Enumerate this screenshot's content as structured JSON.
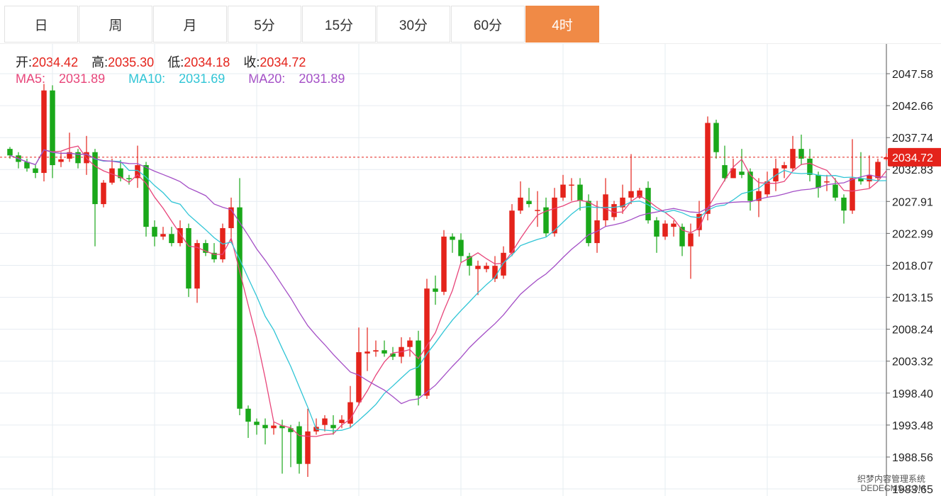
{
  "tabs": [
    {
      "label": "日",
      "active": false
    },
    {
      "label": "周",
      "active": false
    },
    {
      "label": "月",
      "active": false
    },
    {
      "label": "5分",
      "active": false
    },
    {
      "label": "15分",
      "active": false
    },
    {
      "label": "30分",
      "active": false
    },
    {
      "label": "60分",
      "active": false
    },
    {
      "label": "4时",
      "active": true
    }
  ],
  "ohlc": {
    "open_label": "开:",
    "open": "2034.42",
    "high_label": "高:",
    "high": "2035.30",
    "low_label": "低:",
    "low": "2034.18",
    "close_label": "收:",
    "close": "2034.72"
  },
  "ma": {
    "ma5_label": "MA5:",
    "ma5": "2031.89",
    "ma10_label": "MA10:",
    "ma10": "2031.69",
    "ma20_label": "MA20:",
    "ma20": "2031.89"
  },
  "colors": {
    "up": "#e4231b",
    "down": "#1aa81a",
    "ma5": "#e8457a",
    "ma10": "#30c5d6",
    "ma20": "#a44fc6",
    "grid": "#e6ecf1",
    "price_line": "#e4231b",
    "active_tab": "#f08a46"
  },
  "watermark": {
    "line1": "织梦内容管理系统",
    "line2": "DEDECMS.COM"
  },
  "chart_data": {
    "type": "candlestick",
    "yticks": [
      "2047.58",
      "2042.66",
      "2037.74",
      "2032.83",
      "2027.91",
      "2022.99",
      "2018.07",
      "2013.15",
      "2008.24",
      "2003.32",
      "1998.40",
      "1993.48",
      "1988.56",
      "1983.65"
    ],
    "current_price": "2034.72",
    "ylim": [
      1983.65,
      2050.0
    ],
    "candles": [
      [
        2036.0,
        2035.0,
        2036.3,
        2034.5
      ],
      [
        2035.0,
        2034.0,
        2035.5,
        2033.0
      ],
      [
        2034.0,
        2033.0,
        2034.5,
        2032.5
      ],
      [
        2033.0,
        2032.3,
        2033.5,
        2031.5
      ],
      [
        2032.3,
        2045.0,
        2046.0,
        2031.0
      ],
      [
        2045.0,
        2033.5,
        2045.8,
        2031.5
      ],
      [
        2034.0,
        2034.4,
        2035.5,
        2033.2
      ],
      [
        2034.5,
        2035.5,
        2038.5,
        2034.0
      ],
      [
        2035.5,
        2033.8,
        2036.0,
        2033.0
      ],
      [
        2033.8,
        2035.5,
        2038.0,
        2032.0
      ],
      [
        2035.5,
        2027.5,
        2036.0,
        2021.0
      ],
      [
        2027.5,
        2030.8,
        2031.2,
        2027.0
      ],
      [
        2030.8,
        2033.0,
        2034.5,
        2030.5
      ],
      [
        2033.0,
        2031.5,
        2034.3,
        2031.0
      ],
      [
        2031.5,
        2031.4,
        2032.0,
        2030.5
      ],
      [
        2031.5,
        2033.5,
        2036.5,
        2030.0
      ],
      [
        2033.5,
        2024.0,
        2034.0,
        2022.5
      ],
      [
        2024.0,
        2022.5,
        2025.0,
        2021.0
      ],
      [
        2022.5,
        2022.9,
        2024.0,
        2022.0
      ],
      [
        2022.9,
        2021.5,
        2024.0,
        2021.0
      ],
      [
        2021.5,
        2023.8,
        2025.0,
        2021.0
      ],
      [
        2023.8,
        2014.5,
        2024.5,
        2013.2
      ],
      [
        2014.5,
        2021.5,
        2022.0,
        2012.3
      ],
      [
        2021.5,
        2020.0,
        2022.0,
        2019.5
      ],
      [
        2020.0,
        2019.0,
        2021.5,
        2018.5
      ],
      [
        2019.0,
        2023.8,
        2024.5,
        2018.5
      ],
      [
        2023.8,
        2027.0,
        2028.5,
        2021.5
      ],
      [
        2027.0,
        1996.0,
        2031.5,
        1995.0
      ],
      [
        1996.0,
        1994.0,
        1996.5,
        1991.5
      ],
      [
        1994.0,
        1993.5,
        1994.5,
        1992.0
      ],
      [
        1993.5,
        1993.0,
        1994.5,
        1990.5
      ],
      [
        1993.0,
        1993.4,
        1994.0,
        1992.0
      ],
      [
        1993.4,
        1993.0,
        1994.3,
        1986.0
      ],
      [
        1993.0,
        1992.4,
        1993.5,
        1987.0
      ],
      [
        1993.3,
        1987.5,
        1994.0,
        1986.0
      ],
      [
        1987.5,
        1992.5,
        1996.0,
        1985.5
      ],
      [
        1992.5,
        1993.2,
        1994.5,
        1992.0
      ],
      [
        1993.5,
        1994.5,
        1995.0,
        1992.5
      ],
      [
        1993.5,
        1993.0,
        1995.0,
        1992.0
      ],
      [
        1993.8,
        1994.3,
        1995.0,
        1993.0
      ],
      [
        1993.7,
        1997.0,
        1999.5,
        1993.0
      ],
      [
        1997.0,
        2004.7,
        2008.5,
        1996.5
      ],
      [
        2004.5,
        2004.8,
        2008.5,
        2001.8
      ],
      [
        2004.8,
        2005.0,
        2006.5,
        2004.0
      ],
      [
        2005.0,
        2004.5,
        2006.5,
        2004.0
      ],
      [
        2004.5,
        2004.0,
        2005.5,
        2003.5
      ],
      [
        2004.0,
        2005.5,
        2007.0,
        2003.0
      ],
      [
        2005.5,
        2006.5,
        2007.0,
        2004.0
      ],
      [
        2006.5,
        1998.0,
        2008.0,
        1996.5
      ],
      [
        1998.0,
        2014.5,
        2016.0,
        1997.5
      ],
      [
        2014.5,
        2014.0,
        2016.5,
        2012.0
      ],
      [
        2014.0,
        2022.5,
        2023.5,
        2013.5
      ],
      [
        2022.5,
        2022.0,
        2023.0,
        2020.0
      ],
      [
        2022.0,
        2019.5,
        2023.0,
        2018.5
      ],
      [
        2019.5,
        2018.0,
        2020.0,
        2016.5
      ],
      [
        2017.5,
        2018.0,
        2018.8,
        2013.5
      ],
      [
        2017.5,
        2018.0,
        2018.5,
        2017.0
      ],
      [
        2016.0,
        2018.0,
        2019.5,
        2015.5
      ],
      [
        2016.5,
        2020.0,
        2021.0,
        2016.0
      ],
      [
        2020.0,
        2026.5,
        2027.5,
        2019.5
      ],
      [
        2026.5,
        2028.5,
        2031.0,
        2026.0
      ],
      [
        2028.0,
        2027.5,
        2030.0,
        2027.0
      ],
      [
        2026.5,
        2026.6,
        2029.5,
        2024.0
      ],
      [
        2027.0,
        2023.0,
        2028.5,
        2022.5
      ],
      [
        2023.0,
        2028.5,
        2030.0,
        2022.5
      ],
      [
        2028.5,
        2030.5,
        2032.0,
        2028.0
      ],
      [
        2030.5,
        2030.5,
        2031.5,
        2028.0
      ],
      [
        2030.5,
        2028.0,
        2031.5,
        2026.5
      ],
      [
        2028.0,
        2021.5,
        2029.0,
        2021.0
      ],
      [
        2021.5,
        2025.0,
        2028.0,
        2020.0
      ],
      [
        2025.0,
        2029.0,
        2031.5,
        2024.0
      ],
      [
        2025.5,
        2027.5,
        2028.0,
        2025.0
      ],
      [
        2027.0,
        2028.5,
        2030.5,
        2026.0
      ],
      [
        2028.5,
        2029.5,
        2035.2,
        2027.5
      ],
      [
        2028.5,
        2029.6,
        2030.0,
        2028.3
      ],
      [
        2030.0,
        2025.0,
        2031.0,
        2024.5
      ],
      [
        2025.0,
        2022.5,
        2025.5,
        2020.0
      ],
      [
        2022.5,
        2024.5,
        2025.0,
        2022.0
      ],
      [
        2024.0,
        2024.5,
        2025.0,
        2022.5
      ],
      [
        2024.0,
        2021.0,
        2024.5,
        2019.5
      ],
      [
        2021.0,
        2023.0,
        2024.5,
        2016.0
      ],
      [
        2023.5,
        2026.0,
        2028.0,
        2022.5
      ],
      [
        2026.0,
        2040.0,
        2041.0,
        2025.0
      ],
      [
        2040.0,
        2035.5,
        2040.5,
        2034.5
      ],
      [
        2033.5,
        2031.5,
        2036.5,
        2031.0
      ],
      [
        2031.5,
        2033.0,
        2034.5,
        2031.5
      ],
      [
        2032.5,
        2032.0,
        2036.0,
        2031.5
      ],
      [
        2032.5,
        2028.0,
        2033.0,
        2026.5
      ],
      [
        2028.0,
        2029.5,
        2031.5,
        2025.5
      ],
      [
        2029.0,
        2031.0,
        2032.5,
        2028.5
      ],
      [
        2031.0,
        2033.0,
        2034.5,
        2029.5
      ],
      [
        2033.0,
        2033.5,
        2034.0,
        2031.5
      ],
      [
        2033.0,
        2036.0,
        2038.0,
        2032.5
      ],
      [
        2036.0,
        2034.5,
        2038.2,
        2033.5
      ],
      [
        2034.5,
        2032.0,
        2036.0,
        2031.0
      ],
      [
        2032.0,
        2030.0,
        2032.5,
        2028.5
      ],
      [
        2031.0,
        2031.0,
        2032.0,
        2029.5
      ],
      [
        2030.5,
        2028.5,
        2031.5,
        2028.0
      ],
      [
        2028.5,
        2026.5,
        2029.0,
        2024.5
      ],
      [
        2026.5,
        2031.5,
        2037.5,
        2026.0
      ],
      [
        2031.5,
        2031.0,
        2035.5,
        2030.5
      ],
      [
        2031.0,
        2032.0,
        2035.0,
        2030.0
      ],
      [
        2031.5,
        2034.0,
        2034.5,
        2031.0
      ],
      [
        2034.42,
        2034.72,
        2035.3,
        2034.18
      ]
    ]
  }
}
